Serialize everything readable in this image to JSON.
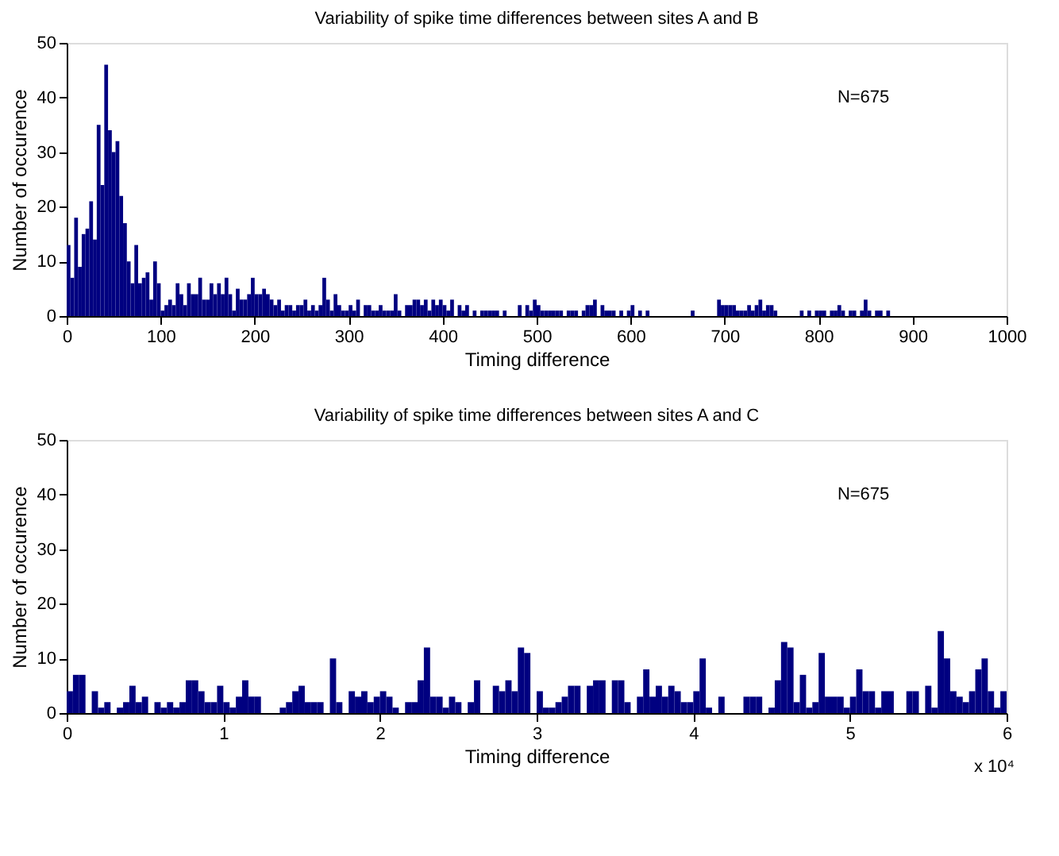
{
  "chart_data": [
    {
      "type": "histogram",
      "title": "Variability of spike time differences between sites A and B",
      "xlabel": "Timing difference",
      "ylabel": "Number of occurence",
      "annotations": [
        "N=675"
      ],
      "bins": [
        0,
        4,
        8,
        12,
        16,
        20,
        24,
        28,
        32,
        36,
        40,
        44,
        48,
        52,
        56,
        60,
        64,
        68,
        72,
        76,
        80,
        84,
        88,
        92,
        96,
        100,
        104,
        108,
        112,
        116,
        120,
        124,
        128,
        132,
        136,
        140,
        144,
        148,
        152,
        156,
        160,
        164,
        168,
        172,
        176,
        180,
        184,
        188,
        192,
        196,
        200,
        204,
        208,
        212,
        216,
        220,
        224,
        228,
        232,
        236,
        240,
        244,
        248,
        252,
        256,
        260,
        264,
        268,
        272,
        276,
        280,
        284,
        288,
        292,
        296,
        300,
        304,
        308,
        312,
        316,
        320,
        324,
        328,
        332,
        336,
        340,
        344,
        348,
        352,
        356,
        360,
        364,
        368,
        372,
        376,
        380,
        384,
        388,
        392,
        396,
        400,
        404,
        408,
        412,
        416,
        420,
        424,
        428,
        432,
        436,
        440,
        444,
        448,
        452,
        456,
        460,
        464,
        468,
        472,
        476,
        480,
        484,
        488,
        492,
        496,
        500,
        504,
        508,
        512,
        516,
        520,
        524,
        528,
        532,
        536,
        540,
        544,
        548,
        552,
        556,
        560,
        564,
        568,
        572,
        576,
        580,
        584,
        588,
        592,
        596,
        600,
        604,
        608,
        612,
        616,
        620,
        624,
        628,
        632,
        636,
        640,
        644,
        648,
        652,
        656,
        660,
        664,
        668,
        672,
        676,
        680,
        684,
        688,
        692,
        696,
        700,
        704,
        708,
        712,
        716,
        720,
        724,
        728,
        732,
        736,
        740,
        744,
        748,
        752,
        756,
        760,
        764,
        768,
        772,
        776,
        780,
        784,
        788,
        792,
        796,
        800,
        804,
        808,
        812,
        816,
        820,
        824,
        828,
        832,
        836,
        840,
        844,
        848,
        852,
        856,
        860,
        864,
        868,
        872,
        876,
        880
      ],
      "values": [
        13,
        7,
        18,
        9,
        15,
        16,
        21,
        14,
        35,
        24,
        46,
        34,
        30,
        32,
        22,
        17,
        10,
        6,
        13,
        6,
        7,
        8,
        3,
        10,
        6,
        1,
        2,
        3,
        2,
        6,
        4,
        2,
        6,
        4,
        4,
        7,
        3,
        3,
        6,
        4,
        6,
        4,
        7,
        4,
        1,
        5,
        3,
        3,
        4,
        7,
        4,
        4,
        5,
        4,
        3,
        2,
        3,
        1,
        2,
        2,
        1,
        2,
        2,
        3,
        1,
        2,
        1,
        2,
        7,
        3,
        1,
        4,
        2,
        1,
        1,
        2,
        1,
        3,
        0,
        2,
        2,
        1,
        1,
        2,
        1,
        1,
        1,
        4,
        1,
        0,
        2,
        2,
        3,
        3,
        2,
        3,
        1,
        3,
        2,
        3,
        2,
        1,
        3,
        0,
        2,
        1,
        2,
        0,
        1,
        0,
        1,
        1,
        1,
        1,
        1,
        0,
        1,
        0,
        0,
        0,
        2,
        0,
        2,
        1,
        3,
        2,
        1,
        1,
        1,
        1,
        1,
        1,
        0,
        1,
        1,
        1,
        0,
        1,
        2,
        2,
        3,
        0,
        2,
        1,
        1,
        1,
        0,
        1,
        0,
        1,
        2,
        0,
        1,
        0,
        1,
        0,
        0,
        0,
        0,
        0,
        0,
        0,
        0,
        0,
        0,
        0,
        1,
        0,
        0,
        0,
        0,
        0,
        0,
        3,
        2,
        2,
        2,
        2,
        1,
        1,
        1,
        2,
        1,
        2,
        3,
        1,
        2,
        2,
        1,
        0,
        0,
        0,
        0,
        0,
        0,
        1,
        0,
        1,
        0,
        1,
        1,
        1,
        0,
        1,
        1,
        2,
        1,
        0,
        1,
        1,
        0,
        1,
        3,
        1,
        0,
        1,
        1,
        0,
        1,
        0
      ],
      "color": "#000080",
      "xlim": [
        0,
        1000
      ],
      "ylim": [
        0,
        50
      ],
      "xticks": [
        0,
        100,
        200,
        300,
        400,
        500,
        600,
        700,
        800,
        900,
        1000
      ],
      "yticks": [
        0,
        10,
        20,
        30,
        40,
        50
      ],
      "grid": false,
      "legend": false
    },
    {
      "type": "histogram",
      "title": "Variability of spike time differences between sites A and C",
      "xlabel": "Timing difference",
      "ylabel": "Number of occurence",
      "annotations": [
        "N=675",
        "x 10⁴"
      ],
      "bins": [
        0,
        0.04,
        0.08,
        0.12,
        0.16,
        0.2,
        0.24,
        0.28,
        0.32,
        0.36,
        0.4,
        0.44,
        0.48,
        0.52,
        0.56,
        0.6,
        0.64,
        0.68,
        0.72,
        0.76,
        0.8,
        0.84,
        0.88,
        0.92,
        0.96,
        1,
        1.04,
        1.08,
        1.12,
        1.16,
        1.2,
        1.24,
        1.28,
        1.32,
        1.36,
        1.4,
        1.44,
        1.48,
        1.52,
        1.56,
        1.6,
        1.64,
        1.68,
        1.72,
        1.76,
        1.8,
        1.84,
        1.88,
        1.92,
        1.96,
        2,
        2.04,
        2.08,
        2.12,
        2.16,
        2.2,
        2.24,
        2.28,
        2.32,
        2.36,
        2.4,
        2.44,
        2.48,
        2.52,
        2.56,
        2.6,
        2.64,
        2.68,
        2.72,
        2.76,
        2.8,
        2.84,
        2.88,
        2.92,
        2.96,
        3,
        3.04,
        3.08,
        3.12,
        3.16,
        3.2,
        3.24,
        3.28,
        3.32,
        3.36,
        3.4,
        3.44,
        3.48,
        3.52,
        3.56,
        3.6,
        3.64,
        3.68,
        3.72,
        3.76,
        3.8,
        3.84,
        3.88,
        3.92,
        3.96,
        4,
        4.04,
        4.08,
        4.12,
        4.16,
        4.2,
        4.24,
        4.28,
        4.32,
        4.36,
        4.4,
        4.44,
        4.48,
        4.52,
        4.56,
        4.6,
        4.64,
        4.68,
        4.72,
        4.76,
        4.8,
        4.84,
        4.88,
        4.92,
        4.96,
        5,
        5.04,
        5.08,
        5.12,
        5.16,
        5.2,
        5.24,
        5.28,
        5.32,
        5.36,
        5.4,
        5.44,
        5.48,
        5.52,
        5.56,
        5.6,
        5.64,
        5.68,
        5.72,
        5.76,
        5.8,
        5.84,
        5.88,
        5.92,
        5.96,
        6
      ],
      "values": [
        4,
        7,
        7,
        0,
        4,
        1,
        2,
        0,
        1,
        2,
        5,
        2,
        3,
        0,
        2,
        1,
        2,
        1,
        2,
        6,
        6,
        4,
        2,
        2,
        5,
        2,
        1,
        3,
        6,
        3,
        3,
        0,
        0,
        0,
        1,
        2,
        4,
        5,
        2,
        2,
        2,
        0,
        10,
        2,
        0,
        4,
        3,
        4,
        2,
        3,
        4,
        3,
        1,
        0,
        2,
        2,
        6,
        12,
        3,
        3,
        1,
        3,
        2,
        0,
        2,
        6,
        0,
        0,
        5,
        4,
        6,
        4,
        12,
        11,
        0,
        4,
        1,
        1,
        2,
        3,
        5,
        5,
        0,
        5,
        6,
        6,
        0,
        6,
        6,
        2,
        0,
        3,
        8,
        3,
        5,
        3,
        5,
        4,
        2,
        2,
        4,
        10,
        1,
        0,
        3,
        0,
        0,
        0,
        3,
        3,
        3,
        0,
        1,
        6,
        13,
        12,
        2,
        7,
        1,
        2,
        11,
        3,
        3,
        3,
        1,
        3,
        8,
        4,
        4,
        1,
        4,
        4,
        0,
        0,
        4,
        4,
        0,
        5,
        1,
        15,
        10,
        4,
        3,
        2,
        4,
        8,
        10,
        4,
        1,
        4
      ],
      "color": "#000080",
      "xlim": [
        0,
        6
      ],
      "ylim": [
        0,
        50
      ],
      "xticks": [
        0,
        1,
        2,
        3,
        4,
        5,
        6
      ],
      "yticks": [
        0,
        10,
        20,
        30,
        40,
        50
      ],
      "grid": false,
      "legend": false
    }
  ]
}
